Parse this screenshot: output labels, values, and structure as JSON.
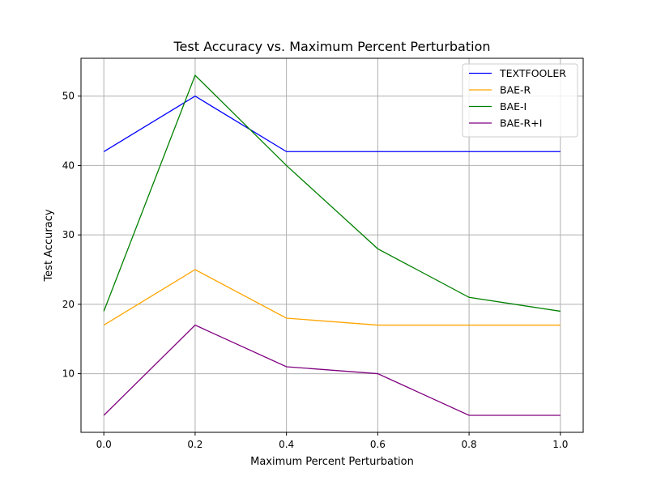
{
  "chart_data": {
    "type": "line",
    "title": "Test Accuracy vs. Maximum Percent Perturbation",
    "xlabel": "Maximum Percent Perturbation",
    "ylabel": "Test Accuracy",
    "xlim": [
      -0.05,
      1.05
    ],
    "ylim": [
      1.55,
      55.45
    ],
    "xticks": [
      0.0,
      0.2,
      0.4,
      0.6,
      0.8,
      1.0
    ],
    "xtick_labels": [
      "0.0",
      "0.2",
      "0.4",
      "0.6",
      "0.8",
      "1.0"
    ],
    "yticks": [
      10,
      20,
      30,
      40,
      50
    ],
    "ytick_labels": [
      "10",
      "20",
      "30",
      "40",
      "50"
    ],
    "grid": true,
    "legend_position": "top-right",
    "x": [
      0.0,
      0.2,
      0.4,
      0.6,
      0.8,
      1.0
    ],
    "series": [
      {
        "name": "TEXTFOOLER",
        "color": "#0000ff",
        "values": [
          42,
          50,
          42,
          42,
          42,
          42
        ]
      },
      {
        "name": "BAE-R",
        "color": "#ffa500",
        "values": [
          17,
          25,
          18,
          17,
          17,
          17
        ]
      },
      {
        "name": "BAE-I",
        "color": "#008000",
        "values": [
          19,
          53,
          40,
          28,
          21,
          19
        ]
      },
      {
        "name": "BAE-R+I",
        "color": "#800080",
        "values": [
          4,
          17,
          11,
          10,
          4,
          4
        ]
      }
    ]
  }
}
